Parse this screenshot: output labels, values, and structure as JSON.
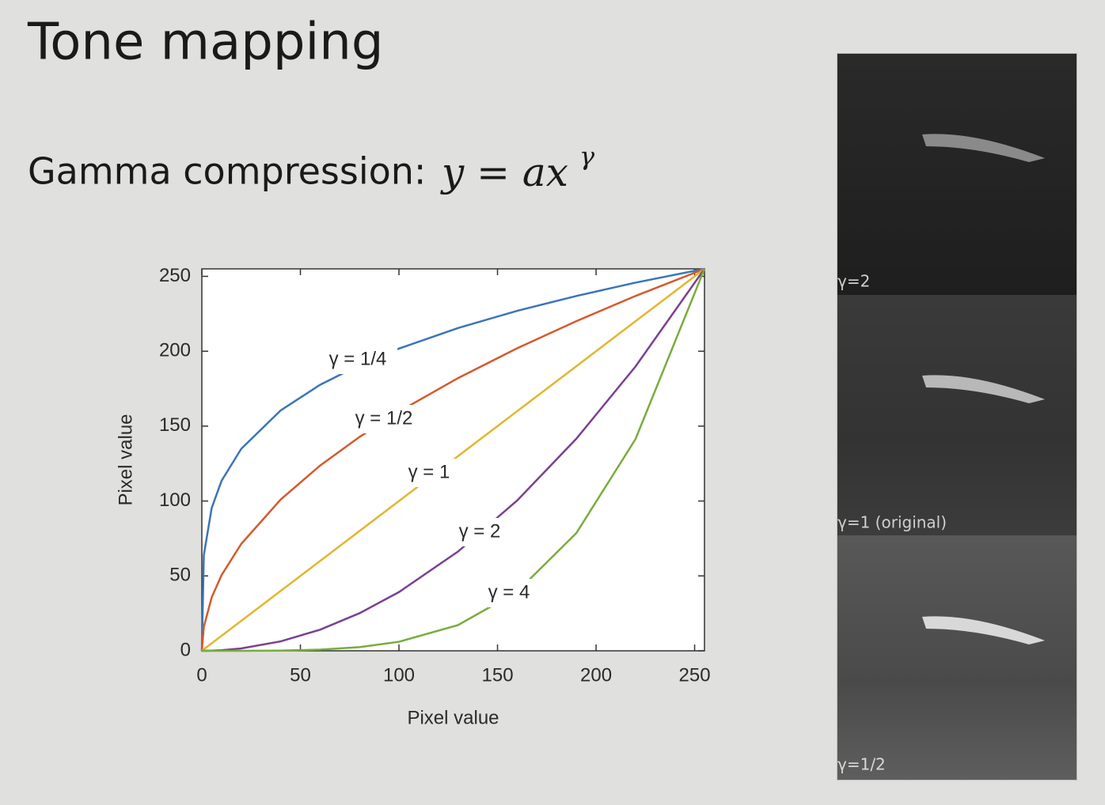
{
  "slide": {
    "title": "Tone mapping",
    "subtitle": "Gamma compression:",
    "formula": {
      "base": "y = ax",
      "exponent": "γ"
    }
  },
  "photos": {
    "captions": [
      "γ=2",
      "γ=1 (original)",
      "γ=1/2"
    ]
  },
  "chart_data": {
    "type": "line",
    "x": [
      0,
      1,
      5,
      10,
      20,
      40,
      60,
      80,
      100,
      130,
      160,
      190,
      220,
      255
    ],
    "series": [
      {
        "name": "γ = 1/4",
        "color": "#3b74ba",
        "values": [
          0,
          63.8,
          95.4,
          113.5,
          134.9,
          160.5,
          177.6,
          190.8,
          201.8,
          215.5,
          227.0,
          236.9,
          245.8,
          255
        ]
      },
      {
        "name": "γ = 1/2",
        "color": "#d45a2c",
        "values": [
          0,
          16.0,
          35.7,
          50.5,
          71.4,
          101.0,
          123.7,
          142.8,
          159.7,
          182.1,
          202.0,
          220.1,
          236.9,
          255
        ]
      },
      {
        "name": "γ = 1",
        "color": "#e4b52e",
        "values": [
          0,
          1,
          5,
          10,
          20,
          40,
          60,
          80,
          100,
          130,
          160,
          190,
          220,
          255
        ]
      },
      {
        "name": "γ = 2",
        "color": "#7b3f95",
        "values": [
          0,
          0.004,
          0.1,
          0.4,
          1.6,
          6.3,
          14.1,
          25.1,
          39.2,
          66.3,
          100.4,
          141.6,
          189.8,
          255
        ]
      },
      {
        "name": "γ = 4",
        "color": "#77ad3b",
        "values": [
          0,
          0,
          0,
          0,
          0.01,
          0.15,
          0.78,
          2.47,
          6.03,
          17.2,
          39.5,
          78.6,
          141.3,
          255
        ]
      }
    ],
    "xlabel": "Pixel value",
    "ylabel": "Pixel value",
    "xlim": [
      0,
      255
    ],
    "ylim": [
      0,
      255
    ],
    "xticks": [
      0,
      50,
      100,
      150,
      200,
      250
    ],
    "yticks": [
      0,
      50,
      100,
      150,
      200,
      250
    ]
  }
}
